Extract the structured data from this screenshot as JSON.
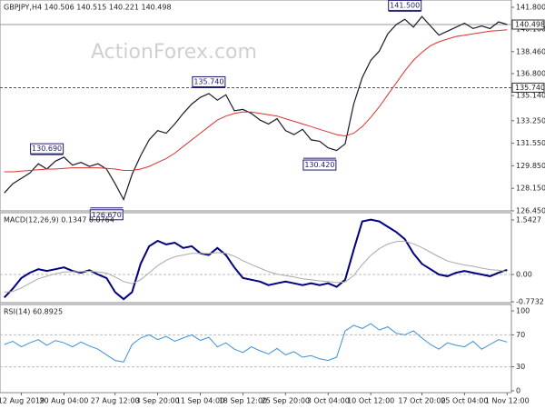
{
  "chart_data": [
    {
      "type": "line",
      "title": "GBPJPY,H4  140.506 140.515 140.221 140.498",
      "watermark": "ActionForex.com",
      "series": [
        {
          "name": "Close",
          "color": "#1a1a2e",
          "values": [
            127.8,
            128.5,
            128.9,
            129.3,
            130.0,
            129.6,
            130.2,
            130.5,
            129.9,
            130.1,
            129.8,
            130.0,
            129.6,
            128.5,
            127.3,
            129.2,
            130.6,
            131.8,
            132.5,
            132.3,
            133.0,
            133.8,
            134.5,
            135.0,
            135.3,
            134.8,
            135.2,
            134.0,
            134.1,
            133.8,
            133.3,
            133.0,
            133.4,
            132.5,
            132.2,
            132.6,
            131.8,
            131.7,
            131.2,
            131.0,
            131.5,
            134.5,
            136.5,
            137.8,
            138.5,
            139.8,
            140.5,
            140.9,
            140.3,
            141.1,
            140.4,
            139.7,
            140.0,
            140.3,
            140.6,
            140.2,
            140.4,
            140.2,
            140.7,
            140.5
          ]
        },
        {
          "name": "MA",
          "color": "#e03030",
          "values": [
            129.4,
            129.4,
            129.45,
            129.5,
            129.55,
            129.6,
            129.6,
            129.65,
            129.7,
            129.7,
            129.7,
            129.7,
            129.65,
            129.6,
            129.5,
            129.5,
            129.6,
            129.8,
            130.1,
            130.4,
            130.8,
            131.3,
            131.8,
            132.3,
            132.8,
            133.3,
            133.6,
            133.8,
            133.9,
            133.9,
            133.8,
            133.7,
            133.6,
            133.4,
            133.2,
            133.0,
            132.8,
            132.6,
            132.4,
            132.2,
            132.1,
            132.3,
            132.8,
            133.5,
            134.3,
            135.2,
            136.1,
            137.0,
            137.8,
            138.4,
            138.9,
            139.2,
            139.4,
            139.6,
            139.7,
            139.8,
            139.9,
            140.0,
            140.05,
            140.1
          ]
        }
      ],
      "ylim": [
        126.45,
        142.35
      ],
      "yticks": [
        {
          "value": 141.8,
          "label": "141.800"
        },
        {
          "value": 140.16,
          "label": "140.160"
        },
        {
          "value": 138.46,
          "label": "138.460"
        },
        {
          "value": 136.8,
          "label": "136.800"
        },
        {
          "value": 135.14,
          "label": "135.140"
        },
        {
          "value": 133.25,
          "label": "133.250"
        },
        {
          "value": 131.55,
          "label": "131.550"
        },
        {
          "value": 129.85,
          "label": "129.850"
        },
        {
          "value": 128.15,
          "label": "128.150"
        },
        {
          "value": 126.45,
          "label": "126.450"
        }
      ],
      "hlines": [
        {
          "value": 140.498,
          "label": "140.498",
          "color": "#999999",
          "dashed": false
        },
        {
          "value": 135.74,
          "label": "135.740",
          "color": "#555555",
          "dashed": true
        }
      ],
      "annotations": [
        {
          "index": 47,
          "value": 141.5,
          "label": "141.500"
        },
        {
          "index": 24,
          "value": 135.74,
          "label": "135.740"
        },
        {
          "index": 5,
          "value": 130.69,
          "label": "130.690"
        },
        {
          "index": 12,
          "value": 126.67,
          "label": "126.670"
        },
        {
          "index": 37,
          "value": 130.42,
          "label": "130.420"
        }
      ]
    },
    {
      "type": "line",
      "title": "MACD(12,26,9) 0.1347 0.0764",
      "series": [
        {
          "name": "MACD",
          "color": "#000080",
          "values": [
            -0.65,
            -0.4,
            -0.1,
            0.05,
            0.15,
            0.1,
            0.15,
            0.2,
            0.1,
            0.05,
            0.12,
            0.0,
            -0.1,
            -0.5,
            -0.7,
            -0.5,
            0.3,
            0.8,
            0.95,
            0.85,
            0.9,
            0.75,
            0.8,
            0.6,
            0.55,
            0.75,
            0.55,
            0.2,
            -0.1,
            -0.15,
            -0.2,
            -0.3,
            -0.25,
            -0.2,
            -0.25,
            -0.3,
            -0.25,
            -0.3,
            -0.25,
            -0.35,
            -0.15,
            0.7,
            1.5,
            1.55,
            1.5,
            1.35,
            1.2,
            1.0,
            0.6,
            0.3,
            0.15,
            0.0,
            -0.05,
            0.05,
            0.1,
            0.05,
            0.0,
            -0.05,
            0.05,
            0.13
          ]
        },
        {
          "name": "Signal",
          "color": "#aaaaaa",
          "values": [
            -0.5,
            -0.48,
            -0.38,
            -0.25,
            -0.12,
            -0.05,
            0.02,
            0.07,
            0.08,
            0.08,
            0.09,
            0.07,
            0.04,
            -0.07,
            -0.2,
            -0.26,
            -0.15,
            0.05,
            0.25,
            0.4,
            0.5,
            0.55,
            0.6,
            0.6,
            0.59,
            0.62,
            0.6,
            0.52,
            0.39,
            0.28,
            0.18,
            0.08,
            0.01,
            -0.03,
            -0.07,
            -0.12,
            -0.15,
            -0.18,
            -0.2,
            -0.23,
            -0.21,
            -0.03,
            0.28,
            0.54,
            0.73,
            0.86,
            0.93,
            0.94,
            0.87,
            0.76,
            0.63,
            0.5,
            0.38,
            0.32,
            0.27,
            0.23,
            0.18,
            0.14,
            0.12,
            0.08
          ]
        }
      ],
      "ylim": [
        -0.797,
        1.748
      ],
      "yticks": [
        1.5427,
        {
          "value": 0,
          "label": "0.00"
        },
        -0.7732
      ],
      "hlines": [
        {
          "value": 0,
          "color": "#bbbbbb",
          "dashed": true
        }
      ]
    },
    {
      "type": "line",
      "title": "RSI(14) 60.8925",
      "categories": [
        null,
        null,
        "12 Aug 2019",
        null,
        null,
        null,
        null,
        "20 Aug 04:00",
        null,
        null,
        null,
        null,
        null,
        "27 Aug 12:00",
        null,
        null,
        null,
        null,
        "3 Sep 20:00",
        null,
        null,
        null,
        null,
        "11 Sep 04:00",
        null,
        null,
        null,
        null,
        "18 Sep 12:00",
        null,
        null,
        null,
        null,
        "25 Sep 20:00",
        null,
        null,
        null,
        null,
        "3 Oct 04:00",
        null,
        null,
        null,
        null,
        "10 Oct 12:00",
        null,
        null,
        null,
        null,
        null,
        "17 Oct 20:00",
        null,
        null,
        null,
        null,
        "25 Oct 04:00",
        null,
        null,
        null,
        null,
        "1 Nov 12:00"
      ],
      "series": [
        {
          "name": "RSI",
          "color": "#3d8fd9",
          "values": [
            58,
            62,
            55,
            60,
            64,
            57,
            63,
            60,
            55,
            61,
            56,
            52,
            45,
            38,
            36,
            58,
            66,
            70,
            64,
            68,
            62,
            66,
            70,
            63,
            67,
            55,
            60,
            52,
            48,
            55,
            50,
            46,
            53,
            45,
            49,
            42,
            44,
            40,
            38,
            42,
            75,
            82,
            78,
            84,
            76,
            80,
            72,
            70,
            75,
            66,
            58,
            52,
            60,
            57,
            55,
            62,
            52,
            58,
            64,
            61
          ]
        }
      ],
      "ylim": [
        -2.3,
        108
      ],
      "yticks": [
        100,
        70,
        30,
        0
      ],
      "hlines": [
        {
          "value": 70,
          "color": "#bbbbbb",
          "dashed": true
        },
        {
          "value": 30,
          "color": "#bbbbbb",
          "dashed": true
        }
      ]
    }
  ]
}
